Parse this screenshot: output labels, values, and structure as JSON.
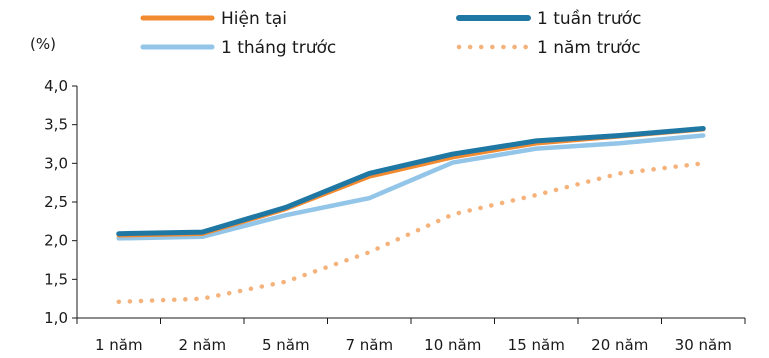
{
  "chart_data": {
    "type": "line",
    "ylabel": "(%)",
    "ylim": [
      1.0,
      4.0
    ],
    "ytick_labels": [
      "1,0",
      "1,5",
      "2,0",
      "2,5",
      "3,0",
      "3,5",
      "4,0"
    ],
    "yticks": [
      1.0,
      1.5,
      2.0,
      2.5,
      3.0,
      3.5,
      4.0
    ],
    "categories": [
      "1 năm",
      "2 năm",
      "5 năm",
      "7 năm",
      "10 năm",
      "15 năm",
      "20 năm",
      "30 năm"
    ],
    "grid": false,
    "legend_position": "top",
    "series": [
      {
        "name": "Hiện tại",
        "color": "#F28A30",
        "style": "solid",
        "values": [
          2.07,
          2.09,
          2.41,
          2.83,
          3.08,
          3.26,
          3.35,
          3.44
        ]
      },
      {
        "name": "1 tuần trước",
        "color": "#1F77A4",
        "style": "solid",
        "values": [
          2.09,
          2.11,
          2.43,
          2.87,
          3.12,
          3.29,
          3.36,
          3.45
        ]
      },
      {
        "name": "1 tháng trước",
        "color": "#92C5E8",
        "style": "solid",
        "values": [
          2.03,
          2.05,
          2.33,
          2.55,
          3.01,
          3.19,
          3.26,
          3.36
        ]
      },
      {
        "name": "1 năm trước",
        "color": "#F5B27A",
        "style": "dotted",
        "values": [
          1.21,
          1.25,
          1.47,
          1.85,
          2.34,
          2.59,
          2.87,
          3.0
        ]
      }
    ]
  }
}
